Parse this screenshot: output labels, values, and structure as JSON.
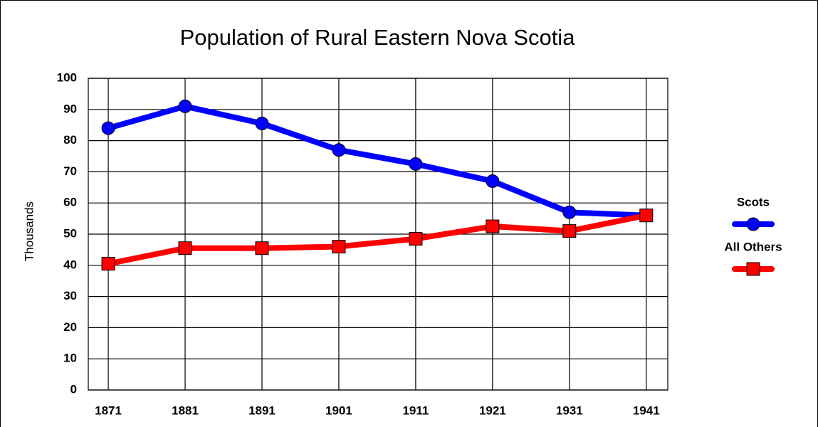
{
  "chart_data": {
    "type": "line",
    "title": "Population of Rural Eastern Nova Scotia",
    "y_label": "Thousands",
    "x": [
      1871,
      1881,
      1891,
      1901,
      1911,
      1921,
      1931,
      1941
    ],
    "xlim": [
      1868.4,
      1943.8
    ],
    "xticks": [
      1871,
      1881,
      1891,
      1901,
      1911,
      1921,
      1931,
      1941
    ],
    "ylim": [
      0,
      100
    ],
    "yticks": [
      0,
      10,
      20,
      30,
      40,
      50,
      60,
      70,
      80,
      90,
      100
    ],
    "grid": true,
    "legend": "right",
    "series": [
      {
        "name": "Scots",
        "color": "#0000ff",
        "marker": "circle",
        "values": [
          84,
          91,
          85.5,
          77,
          72.5,
          67,
          57,
          56
        ]
      },
      {
        "name": "All Others",
        "color": "#ff0000",
        "marker": "square",
        "values": [
          40.5,
          45.5,
          45.5,
          46,
          48.5,
          52.5,
          51,
          56
        ]
      }
    ]
  }
}
